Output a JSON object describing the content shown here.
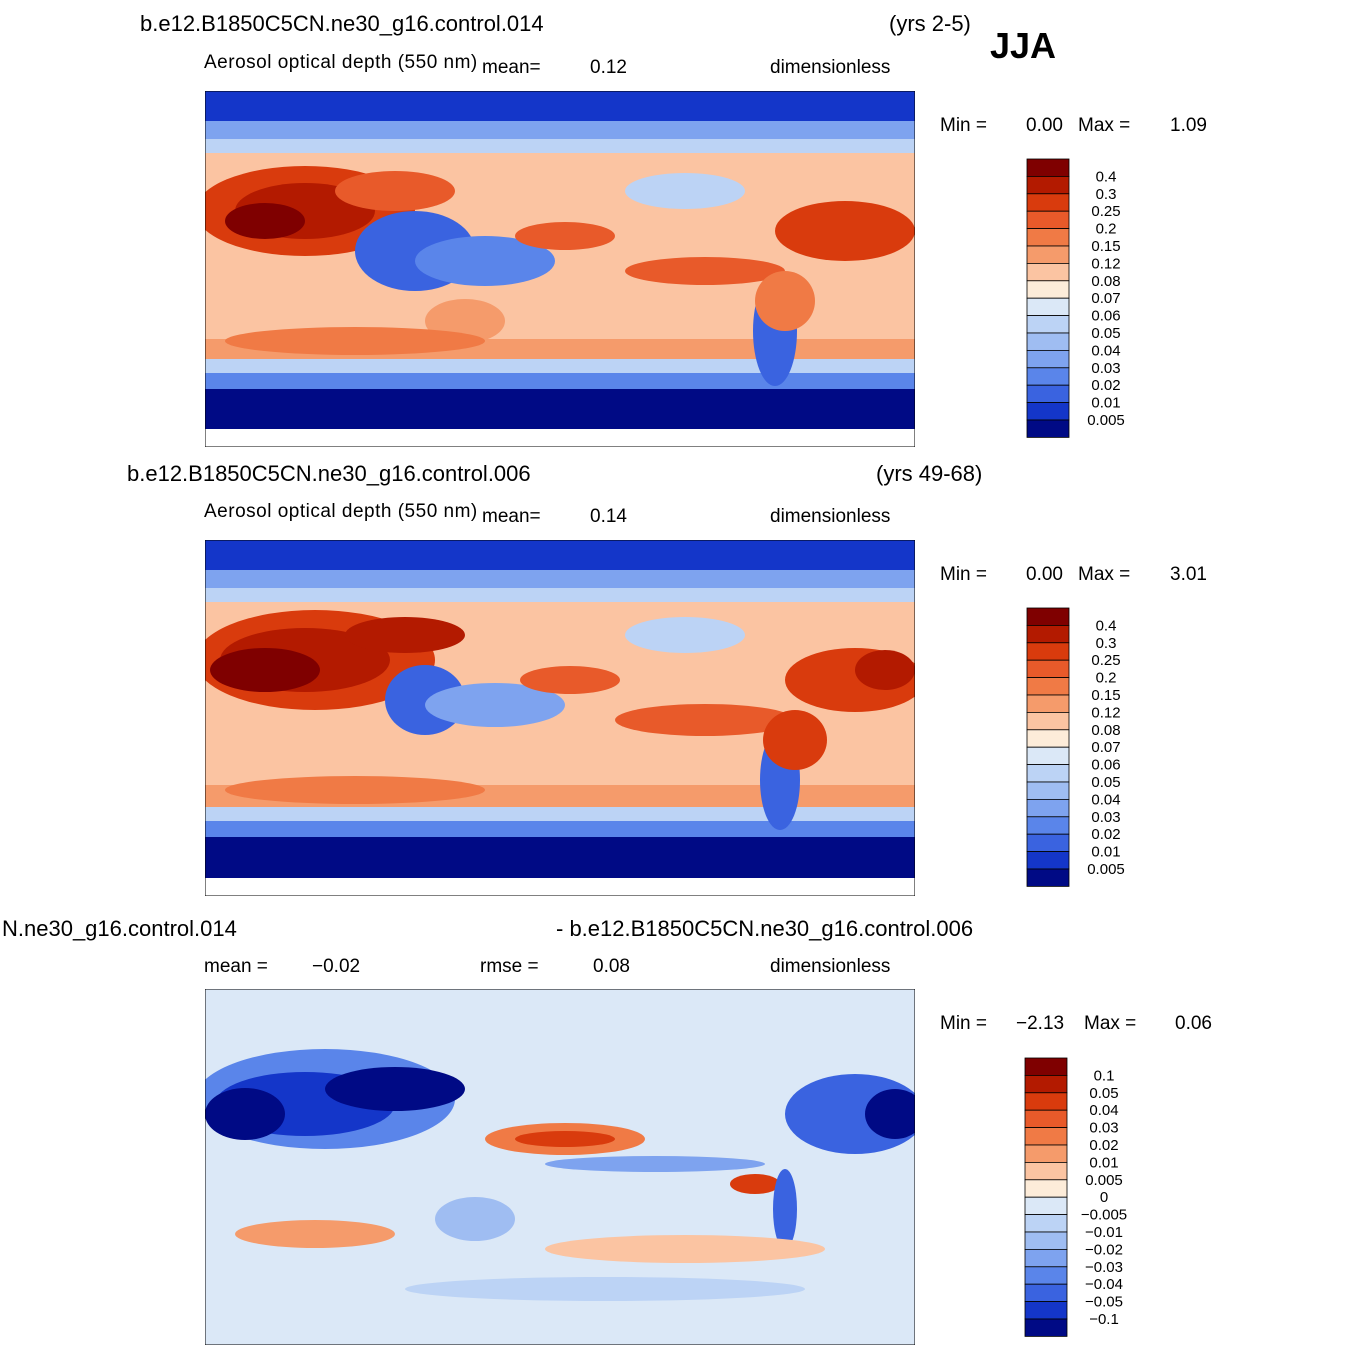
{
  "season": "JJA",
  "panels": [
    {
      "case": "b.e12.B1850C5CN.ne30_g16.control.014",
      "years": "(yrs 2-5)",
      "variable": "Aerosol optical depth (550 nm)",
      "mean_label": "mean=",
      "mean_value": "0.12",
      "units": "dimensionless",
      "min_label": "Min =",
      "min_value": "0.00",
      "max_label": "Max =",
      "max_value": "1.09",
      "levels": [
        "0.4",
        "0.3",
        "0.25",
        "0.2",
        "0.15",
        "0.12",
        "0.08",
        "0.07",
        "0.06",
        "0.05",
        "0.04",
        "0.03",
        "0.02",
        "0.01",
        "0.005"
      ]
    },
    {
      "case": "b.e12.B1850C5CN.ne30_g16.control.006",
      "years": "(yrs 49-68)",
      "variable": "Aerosol optical depth (550 nm)",
      "mean_label": "mean=",
      "mean_value": "0.14",
      "units": "dimensionless",
      "min_label": "Min =",
      "min_value": "0.00",
      "max_label": "Max =",
      "max_value": "3.01",
      "levels": [
        "0.4",
        "0.3",
        "0.25",
        "0.2",
        "0.15",
        "0.12",
        "0.08",
        "0.07",
        "0.06",
        "0.05",
        "0.04",
        "0.03",
        "0.02",
        "0.01",
        "0.005"
      ]
    },
    {
      "case_left": "N.ne30_g16.control.014",
      "case_right": "- b.e12.B1850C5CN.ne30_g16.control.006",
      "mean_label": "mean =",
      "mean_value": "−0.02",
      "rmse_label": "rmse =",
      "rmse_value": "0.08",
      "units": "dimensionless",
      "min_label": "Min =",
      "min_value": "−2.13",
      "max_label": "Max =",
      "max_value": "0.06",
      "levels": [
        "0.1",
        "0.05",
        "0.04",
        "0.03",
        "0.02",
        "0.01",
        "0.005",
        "0",
        "−0.005",
        "−0.01",
        "−0.02",
        "−0.03",
        "−0.04",
        "−0.05",
        "−0.1"
      ]
    }
  ],
  "colors": {
    "ramp": [
      "#7f0000",
      "#b31a00",
      "#d93b0d",
      "#e85a2a",
      "#f07a45",
      "#f59b6b",
      "#fbc4a2",
      "#fdecd9",
      "#dbe8f7",
      "#bcd3f5",
      "#9fbdf2",
      "#7ea3ef",
      "#5a85ea",
      "#3a63e0",
      "#1436c9",
      "#000a85"
    ]
  }
}
